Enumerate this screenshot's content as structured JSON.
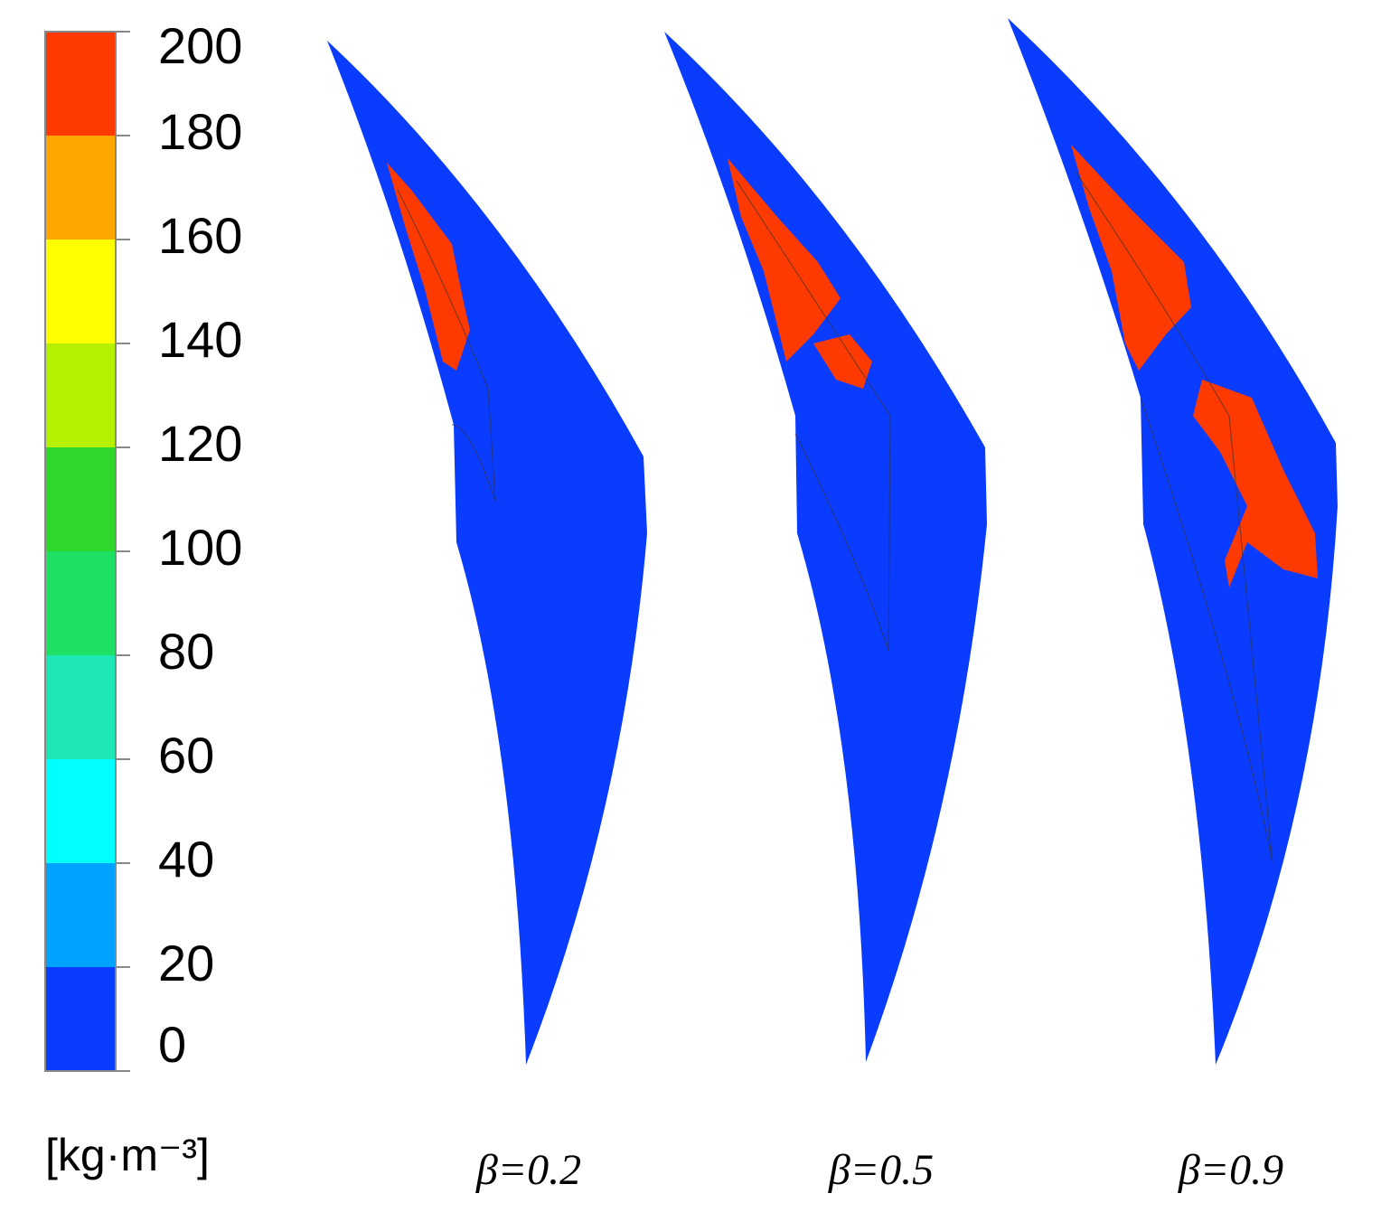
{
  "colorbar": {
    "ticks": [
      0,
      20,
      40,
      60,
      80,
      100,
      120,
      140,
      160,
      180,
      200
    ],
    "colors": [
      "#0a3cff",
      "#00a2ff",
      "#00ffff",
      "#1ee6b4",
      "#1ee064",
      "#2ed82a",
      "#b4f000",
      "#ffff00",
      "#ffa500",
      "#ff3a00"
    ],
    "unit": "[kg·m⁻³]"
  },
  "panels": [
    {
      "label": "β=0.2"
    },
    {
      "label": "β=0.5"
    },
    {
      "label": "β=0.9"
    }
  ]
}
